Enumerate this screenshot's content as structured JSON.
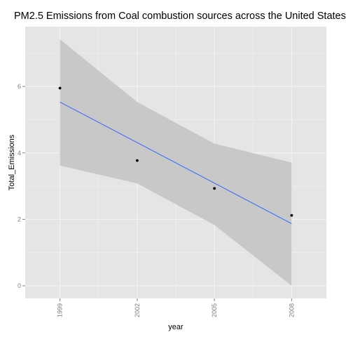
{
  "chart_data": {
    "type": "scatter",
    "title": "PM2.5 Emissions from Coal combustion sources across the United States",
    "xlabel": "year",
    "ylabel": "Total_Emissions",
    "x": [
      1999,
      2002,
      2005,
      2008
    ],
    "y": [
      5.95,
      3.77,
      2.93,
      2.12
    ],
    "x_tick_labels": [
      "1999",
      "2002",
      "2005",
      "2008"
    ],
    "y_ticks": [
      0,
      2,
      4,
      6
    ],
    "xlim": [
      1997.65,
      2009.35
    ],
    "ylim": [
      -0.38,
      7.8
    ],
    "trend_line": {
      "x": [
        1999,
        2008
      ],
      "y": [
        5.53,
        1.87
      ],
      "color": "#3366ff"
    },
    "confidence_band": {
      "x": [
        1999,
        2002,
        2005,
        2008
      ],
      "lower": [
        3.62,
        3.08,
        1.83,
        0.0
      ],
      "upper": [
        7.42,
        5.53,
        4.28,
        3.71
      ],
      "color": "#c8c8c8"
    },
    "point_color": "#000000",
    "panel_background": "#e5e5e5",
    "grid_color": "#f2f2f2",
    "grid": true
  }
}
